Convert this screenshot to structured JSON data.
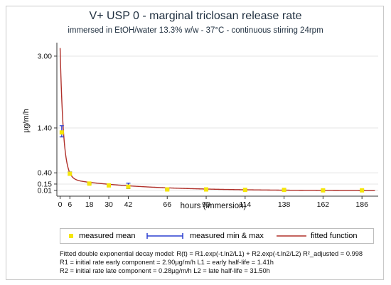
{
  "chart_data": {
    "type": "scatter",
    "title": "V+ USP 0 - marginal triclosan release rate",
    "subtitle": "immersed in EtOH/water 13.3% w/w - 37°C - continuous stirring 24rpm",
    "xlabel": "hours (immersion)",
    "ylabel": "µg/m/h",
    "x_ticks": [
      0,
      6,
      18,
      30,
      42,
      66,
      90,
      114,
      138,
      162,
      186
    ],
    "y_ticks": [
      0.01,
      0.15,
      0.4,
      1.4,
      3.0
    ],
    "y_tick_labels": [
      "0.01",
      "0.15",
      "0.40",
      "1.40",
      "3.00"
    ],
    "xlim": [
      -2,
      196
    ],
    "ylim": [
      -0.12,
      3.3
    ],
    "grid": true,
    "legend_position": "bottom",
    "series": [
      {
        "name": "measured mean",
        "x": [
          1,
          6,
          18,
          30,
          42,
          66,
          90,
          114,
          138,
          162,
          186
        ],
        "y": [
          1.3,
          0.38,
          0.16,
          0.12,
          0.09,
          0.03,
          0.03,
          0.02,
          0.02,
          0.01,
          0.01
        ],
        "color": "#f5e60a"
      },
      {
        "name": "measured min & max",
        "x": [
          1,
          6,
          18,
          30,
          42,
          66,
          90,
          114,
          138,
          162,
          186
        ],
        "ymin": [
          1.2,
          0.35,
          0.15,
          0.11,
          0.05,
          0.02,
          0.02,
          0.01,
          0.01,
          0.005,
          0.005
        ],
        "ymax": [
          1.45,
          0.42,
          0.17,
          0.14,
          0.17,
          0.04,
          0.04,
          0.03,
          0.03,
          0.02,
          0.02
        ],
        "color": "#2c3fd0"
      },
      {
        "name": "fitted function",
        "type": "line",
        "model": {
          "R1": 2.9,
          "L1": 1.41,
          "R2": 0.28,
          "L2": 31.5
        },
        "x_range": [
          0,
          194
        ],
        "color": "#b0302a"
      }
    ],
    "annotations": [
      "Fitted double exponential decay model: R(t) = R1.exp(-t.ln2/L1) + R2.exp(-t.ln2/L2) R²_adjusted = 0.998",
      "R1 = initial rate early component = 2.90µg/m/h  L1 = early half-life = 1.41h",
      "R2 = initial rate late component = 0.28µg/m/h  L2 = late half-life = 31.50h"
    ]
  },
  "colors": {
    "mean_marker": "#f5e60a",
    "minmax_bar": "#2c3fd0",
    "fit_line": "#b0302a",
    "grid": "#e4e4e4"
  }
}
